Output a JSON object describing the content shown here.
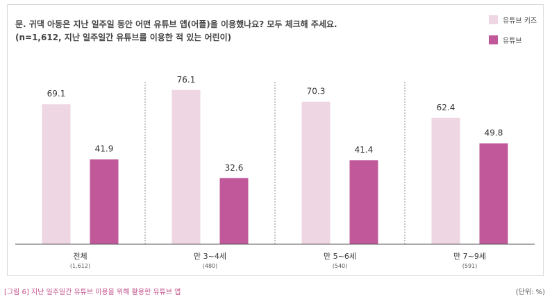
{
  "question": {
    "line1": "문. 귀댁 아동은 지난 일주일 동안 어떤 유튜브 앱(어플)을 이용했나요? 모두 체크해 주세요.",
    "line2": "(n=1,612, 지난 일주일간 유튜브를 이용한 적 있는 어린이)"
  },
  "caption": "[그림 6] 지난 일주일간 유튜브 이용을 위해 활용한 유튜브 앱",
  "unit": "(단위: %)",
  "colors": {
    "kids": "#eed6e3",
    "youtube": "#c0589a",
    "axis": "#555555",
    "divider": "#888888"
  },
  "chart_data": {
    "type": "bar",
    "title": "",
    "xlabel": "",
    "ylabel": "",
    "ylim": [
      0,
      100
    ],
    "grid": false,
    "legend_position": "top-right",
    "categories": [
      "전체",
      "만 3~4세",
      "만 5~6세",
      "만 7~9세"
    ],
    "category_counts": [
      "(1,612)",
      "(480)",
      "(540)",
      "(591)"
    ],
    "series": [
      {
        "name": "유튜브 키즈",
        "values": [
          69.1,
          76.1,
          70.3,
          62.4
        ],
        "labels": [
          "69.1",
          "76.1",
          "70.3",
          "62.4"
        ]
      },
      {
        "name": "유튜브",
        "values": [
          41.9,
          32.6,
          41.4,
          49.8
        ],
        "labels": [
          "41.9",
          "32.6",
          "41.4",
          "49.8"
        ]
      }
    ]
  }
}
